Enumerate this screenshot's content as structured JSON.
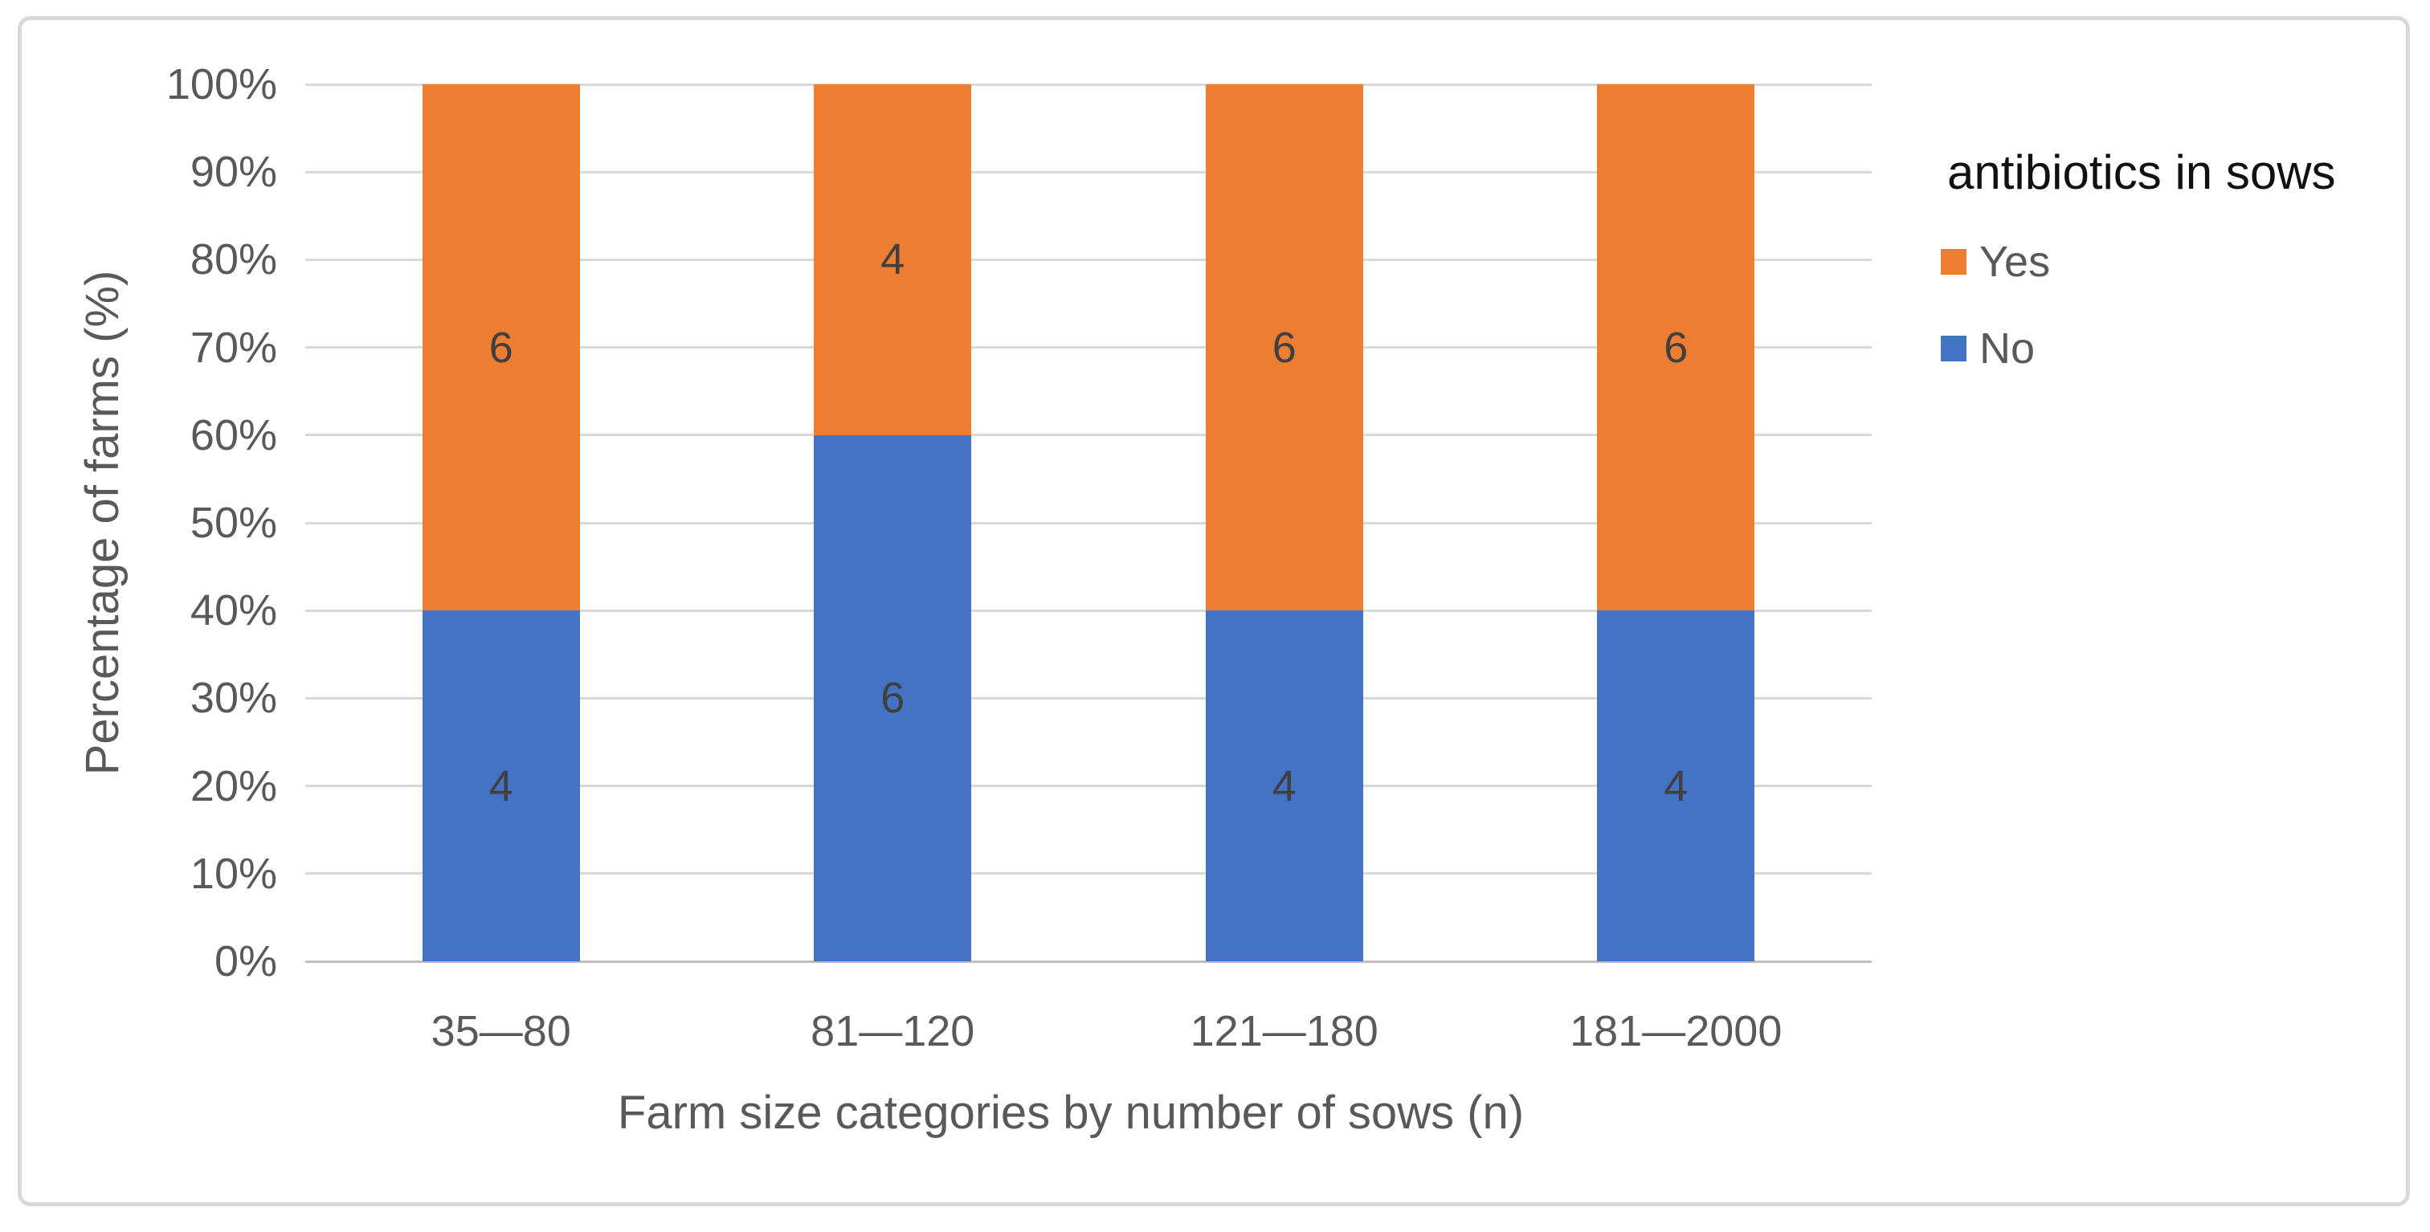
{
  "figure": {
    "background": "#ffffff",
    "border_color": "#d9d9d9"
  },
  "chart_data": {
    "type": "bar",
    "stacked": true,
    "percent_axis": true,
    "title": "",
    "xlabel": "Farm size categories by number of sows (n)",
    "ylabel": "Percentage of farms (%)",
    "categories": [
      "35—80",
      "81—120",
      "121—180",
      "181—2000"
    ],
    "series": [
      {
        "name": "No",
        "color": "#4472C4",
        "values": [
          4,
          6,
          4,
          4
        ],
        "percent": [
          40,
          60,
          40,
          40
        ]
      },
      {
        "name": "Yes",
        "color": "#ED7D31",
        "values": [
          6,
          4,
          6,
          6
        ],
        "percent": [
          60,
          40,
          60,
          60
        ]
      }
    ],
    "ylim": [
      0,
      100
    ],
    "y_ticks": [
      "0%",
      "10%",
      "20%",
      "30%",
      "40%",
      "50%",
      "60%",
      "70%",
      "80%",
      "90%",
      "100%"
    ],
    "grid": true,
    "legend": {
      "title": "antibiotics in sows",
      "position": "right",
      "entries": [
        "Yes",
        "No"
      ]
    },
    "style_colors": {
      "grid": "#d9d9d9",
      "axis": "#bfbfbf",
      "tick_label": "#595959",
      "axis_title": "#595959",
      "data_label": "#404040",
      "legend_title": "#111111",
      "legend_label": "#595959"
    }
  }
}
